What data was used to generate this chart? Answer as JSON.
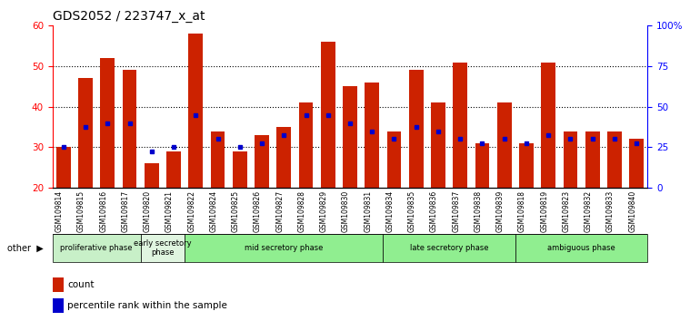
{
  "title": "GDS2052 / 223747_x_at",
  "samples": [
    "GSM109814",
    "GSM109815",
    "GSM109816",
    "GSM109817",
    "GSM109820",
    "GSM109821",
    "GSM109822",
    "GSM109824",
    "GSM109825",
    "GSM109826",
    "GSM109827",
    "GSM109828",
    "GSM109829",
    "GSM109830",
    "GSM109831",
    "GSM109834",
    "GSM109835",
    "GSM109836",
    "GSM109837",
    "GSM109838",
    "GSM109839",
    "GSM109818",
    "GSM109819",
    "GSM109823",
    "GSM109832",
    "GSM109833",
    "GSM109840"
  ],
  "count_values": [
    30,
    47,
    52,
    49,
    26,
    29,
    58,
    34,
    29,
    33,
    35,
    41,
    56,
    45,
    46,
    34,
    49,
    41,
    51,
    31,
    41,
    31,
    51,
    34,
    34,
    34,
    32
  ],
  "percentile_values": [
    30,
    35,
    36,
    36,
    29,
    30,
    38,
    32,
    30,
    31,
    33,
    38,
    38,
    36,
    34,
    32,
    35,
    34,
    32,
    31,
    32,
    31,
    33,
    32,
    32,
    32,
    31
  ],
  "phases": [
    {
      "name": "proliferative phase",
      "start": 0,
      "end": 4,
      "color": "#c8f0c8"
    },
    {
      "name": "early secretory\nphase",
      "start": 4,
      "end": 6,
      "color": "#e0f5e0"
    },
    {
      "name": "mid secretory phase",
      "start": 6,
      "end": 15,
      "color": "#90ee90"
    },
    {
      "name": "late secretory phase",
      "start": 15,
      "end": 21,
      "color": "#90ee90"
    },
    {
      "name": "ambiguous phase",
      "start": 21,
      "end": 27,
      "color": "#90ee90"
    }
  ],
  "bar_bottom": 20,
  "ylim_left": [
    20,
    60
  ],
  "ylim_right": [
    0,
    100
  ],
  "yticks_left": [
    20,
    30,
    40,
    50,
    60
  ],
  "yticks_right": [
    0,
    25,
    50,
    75,
    100
  ],
  "yticklabels_right": [
    "0",
    "25",
    "50",
    "75",
    "100%"
  ],
  "bar_color": "#cc2200",
  "percentile_color": "#0000cc",
  "title_fontsize": 10,
  "other_label": "other",
  "legend_count": "count",
  "legend_percentile": "percentile rank within the sample"
}
